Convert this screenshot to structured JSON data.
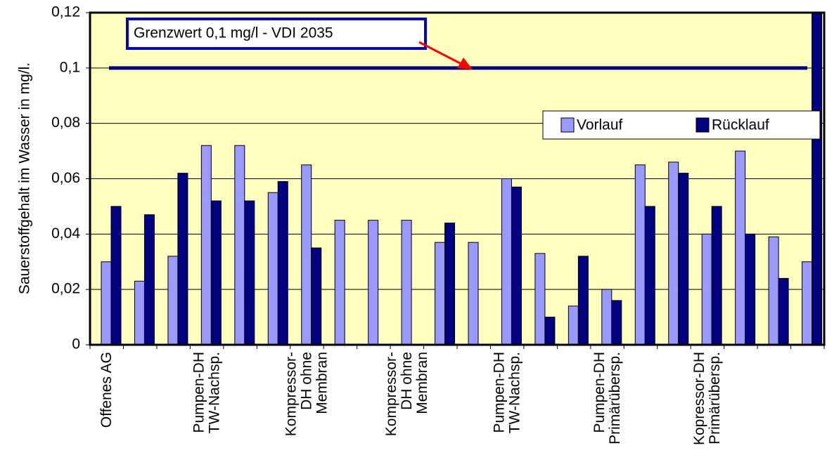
{
  "chart_data": {
    "type": "bar",
    "y_label": "Sauerstoffgehalt im Wasser in mg/l.",
    "categories": [
      "Offenes AG",
      null,
      null,
      "Pumpen-DH\nTW-Nachsp.",
      null,
      null,
      "Kompressor-\nDH ohne\nMembran",
      null,
      null,
      "Kompressor-\nDH ohne\nMembran",
      null,
      null,
      "Pumpen-DH\nTW-Nachsp.",
      null,
      null,
      "Pumpen-DH\nPrimärübersp.",
      null,
      null,
      "Kopressor-DH\nPrimärübersp.",
      null,
      null,
      null
    ],
    "series": [
      {
        "name": "Vorlauf",
        "color": "#9999ff",
        "values": [
          0.03,
          0.023,
          0.032,
          0.072,
          0.072,
          0.055,
          0.065,
          0.045,
          0.045,
          0.045,
          0.037,
          0.037,
          0.06,
          0.033,
          0.014,
          0.02,
          0.065,
          0.066,
          0.04,
          0.07,
          0.039,
          0.03
        ]
      },
      {
        "name": "Rücklauf",
        "color": "#000080",
        "values": [
          0.05,
          0.047,
          0.062,
          0.052,
          0.052,
          0.059,
          0.035,
          null,
          null,
          null,
          0.044,
          null,
          0.057,
          0.01,
          0.032,
          0.016,
          0.05,
          0.062,
          0.05,
          0.04,
          0.024,
          0.12
        ]
      }
    ],
    "ylim": [
      0,
      0.12
    ],
    "yticks": [
      0,
      {
        "value": 0.02,
        "label": "0,02"
      },
      {
        "value": 0.04,
        "label": "0,04"
      },
      {
        "value": 0.06,
        "label": "0,06"
      },
      {
        "value": 0.08,
        "label": "0,08"
      },
      {
        "value": 0.1,
        "label": "0,1"
      },
      {
        "value": 0.12,
        "label": "0,12"
      }
    ],
    "grid": true,
    "reference_line": {
      "value": 0.1,
      "color": "#000080"
    },
    "annotation": "Grenzwert 0,1 mg/l - VDI 2035",
    "legend": "upper right"
  }
}
